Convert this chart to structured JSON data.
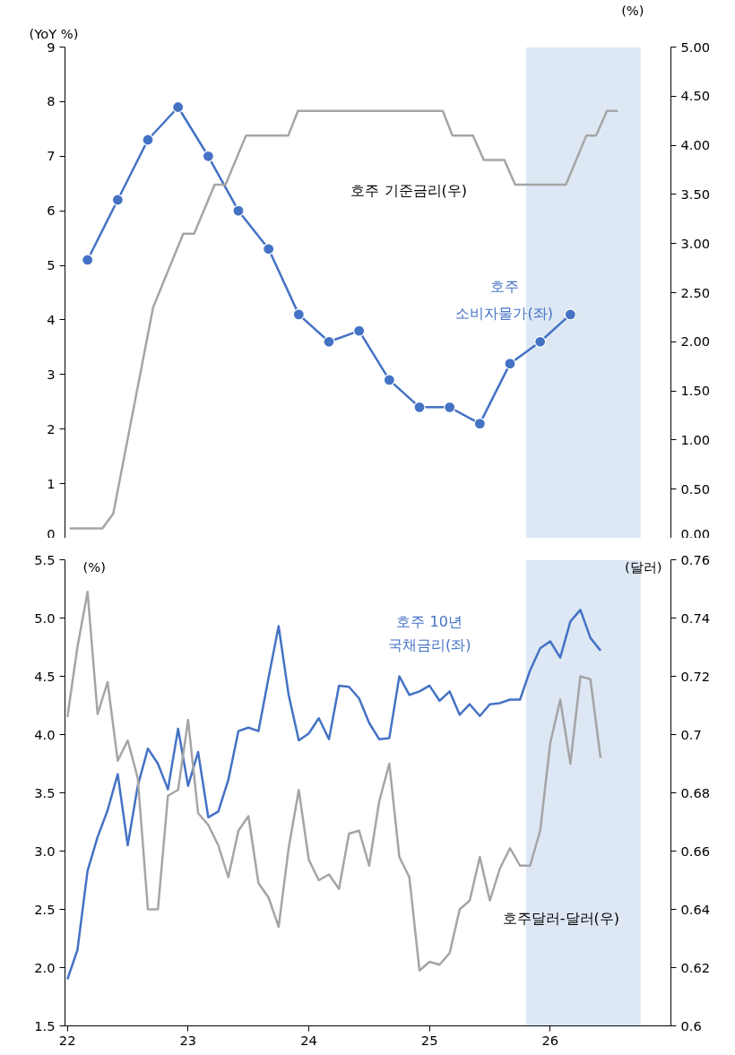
{
  "chart_data": [
    {
      "type": "line",
      "xlim": [
        21.98,
        27.0
      ],
      "ylim": [
        0,
        9
      ],
      "yticks": [
        0,
        1,
        2,
        3,
        4,
        5,
        6,
        7,
        8,
        9
      ],
      "ylabel": "(YoY %)",
      "y2lim": [
        0,
        5
      ],
      "y2ticks": [
        {
          "value": 0,
          "label": "0.00"
        },
        {
          "value": 0.5,
          "label": "0.50"
        },
        {
          "value": 1,
          "label": "1.00"
        },
        {
          "value": 1.5,
          "label": "1.50"
        },
        {
          "value": 2,
          "label": "2.00"
        },
        {
          "value": 2.5,
          "label": "2.50"
        },
        {
          "value": 3,
          "label": "3.00"
        },
        {
          "value": 3.5,
          "label": "3.50"
        },
        {
          "value": 4,
          "label": "4.00"
        },
        {
          "value": 4.5,
          "label": "4.50"
        },
        {
          "value": 5,
          "label": "5.00"
        }
      ],
      "y2label": "(%)",
      "tick_labels": "y",
      "grid": false,
      "legend": false,
      "bands": [
        {
          "axis": "x",
          "from": 25.8,
          "to": 26.75,
          "color": "#dde8f4"
        }
      ],
      "series": [
        {
          "name": "호주\n소비자물가(좌)",
          "color": "#4472c4",
          "marker": "circle",
          "x": [
            22.167,
            22.417,
            22.667,
            22.917,
            23.167,
            23.417,
            23.667,
            23.917,
            24.167,
            24.417,
            24.667,
            24.917,
            25.167,
            25.417,
            25.667,
            25.917,
            26.167
          ],
          "values": [
            5.1,
            6.2,
            7.3,
            7.9,
            7.0,
            6.0,
            5.3,
            4.1,
            3.6,
            3.8,
            2.9,
            2.4,
            2.4,
            2.1,
            3.2,
            3.6,
            4.1
          ]
        },
        {
          "name": "호주 기준금리(우)",
          "color": "#a5a5a5",
          "axis": "y2",
          "marker": "none",
          "x": [
            22.02,
            22.29,
            22.38,
            22.71,
            22.96,
            23.05,
            23.22,
            23.31,
            23.48,
            23.83,
            23.91,
            25.11,
            25.19,
            25.36,
            25.45,
            25.62,
            25.71,
            26.13,
            26.3,
            26.38,
            26.47,
            26.56
          ],
          "values": [
            0.1,
            0.1,
            0.25,
            2.35,
            3.1,
            3.1,
            3.6,
            3.6,
            4.1,
            4.1,
            4.35,
            4.35,
            4.1,
            4.1,
            3.85,
            3.85,
            3.6,
            3.6,
            4.1,
            4.1,
            4.35,
            4.35
          ]
        }
      ]
    },
    {
      "type": "line",
      "xlim": [
        21.98,
        27.0
      ],
      "xticks": [
        22,
        23,
        24,
        25,
        26
      ],
      "ylim": [
        1.5,
        5.5
      ],
      "yticks": [
        1.5,
        {
          "value": 2,
          "label": "2.0"
        },
        2.5,
        {
          "value": 3,
          "label": "3.0"
        },
        3.5,
        {
          "value": 4,
          "label": "4.0"
        },
        4.5,
        {
          "value": 5,
          "label": "5.0"
        },
        5.5
      ],
      "ylabel": "(%)",
      "y2lim": [
        0.6,
        0.76
      ],
      "y2ticks": [
        0.6,
        0.62,
        0.64,
        0.66,
        0.68,
        0.7,
        0.72,
        0.74,
        0.76
      ],
      "y2label": "(달러)",
      "grid": false,
      "legend": false,
      "bands": [
        {
          "axis": "x",
          "from": 25.8,
          "to": 26.75,
          "color": "#dde8f4"
        }
      ],
      "series": [
        {
          "name": "호주 10년\n국채금리(좌)",
          "color": "#4472c4",
          "marker": "none",
          "x": [
            22.0,
            22.083,
            22.167,
            22.25,
            22.333,
            22.417,
            22.5,
            22.583,
            22.667,
            22.75,
            22.833,
            22.917,
            23.0,
            23.083,
            23.167,
            23.25,
            23.333,
            23.417,
            23.5,
            23.583,
            23.667,
            23.75,
            23.833,
            23.917,
            24.0,
            24.083,
            24.167,
            24.25,
            24.333,
            24.417,
            24.5,
            24.583,
            24.667,
            24.75,
            24.833,
            24.917,
            25.0,
            25.083,
            25.167,
            25.25,
            25.333,
            25.417,
            25.5,
            25.583,
            25.667,
            25.75,
            25.833,
            25.917,
            26.0,
            26.083,
            26.167,
            26.25,
            26.333,
            26.417
          ],
          "values": [
            1.9,
            2.15,
            2.83,
            3.12,
            3.35,
            3.66,
            3.05,
            3.56,
            3.88,
            3.75,
            3.53,
            4.05,
            3.56,
            3.85,
            3.29,
            3.34,
            3.61,
            4.03,
            4.06,
            4.03,
            4.49,
            4.93,
            4.34,
            3.95,
            4.01,
            4.14,
            3.96,
            4.42,
            4.41,
            4.31,
            4.1,
            3.96,
            3.97,
            4.5,
            4.34,
            4.37,
            4.42,
            4.29,
            4.37,
            4.17,
            4.26,
            4.16,
            4.26,
            4.27,
            4.3,
            4.3,
            4.55,
            4.74,
            4.8,
            4.66,
            4.97,
            5.07,
            4.83,
            4.72
          ]
        },
        {
          "name": "호주달러-달러(우)",
          "color": "#a5a5a5",
          "axis": "y2",
          "marker": "none",
          "x": [
            22.0,
            22.083,
            22.167,
            22.25,
            22.333,
            22.417,
            22.5,
            22.583,
            22.667,
            22.75,
            22.833,
            22.917,
            23.0,
            23.083,
            23.167,
            23.25,
            23.333,
            23.417,
            23.5,
            23.583,
            23.667,
            23.75,
            23.833,
            23.917,
            24.0,
            24.083,
            24.167,
            24.25,
            24.333,
            24.417,
            24.5,
            24.583,
            24.667,
            24.75,
            24.833,
            24.917,
            25.0,
            25.083,
            25.167,
            25.25,
            25.333,
            25.417,
            25.5,
            25.583,
            25.667,
            25.75,
            25.833,
            25.917,
            26.0,
            26.083,
            26.167,
            26.25,
            26.333,
            26.417
          ],
          "values": [
            0.706,
            0.73,
            0.749,
            0.707,
            0.718,
            0.691,
            0.698,
            0.685,
            0.64,
            0.64,
            0.679,
            0.681,
            0.705,
            0.673,
            0.669,
            0.662,
            0.651,
            0.667,
            0.672,
            0.649,
            0.644,
            0.634,
            0.661,
            0.681,
            0.657,
            0.65,
            0.652,
            0.647,
            0.666,
            0.667,
            0.655,
            0.677,
            0.69,
            0.658,
            0.651,
            0.619,
            0.622,
            0.621,
            0.625,
            0.64,
            0.643,
            0.658,
            0.643,
            0.654,
            0.661,
            0.655,
            0.655,
            0.667,
            0.697,
            0.712,
            0.69,
            0.72,
            0.719,
            0.692
          ]
        }
      ]
    }
  ]
}
